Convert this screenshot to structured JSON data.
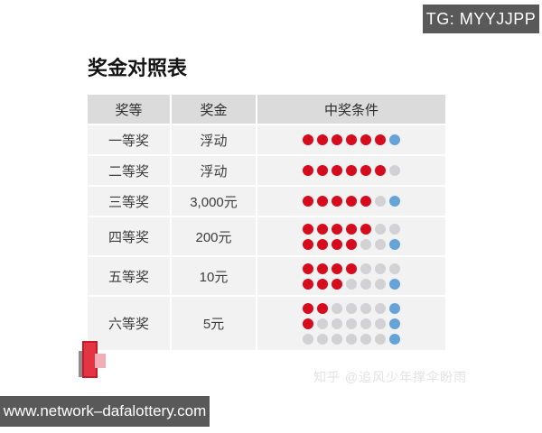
{
  "badge": {
    "label": "TG: MYYJJPP"
  },
  "title": "奖金对照表",
  "table": {
    "headers": [
      "奖等",
      "奖金",
      "中奖条件"
    ],
    "rows": [
      {
        "level": "一等奖",
        "prize": "浮动",
        "dots": [
          [
            "r",
            "r",
            "r",
            "r",
            "r",
            "r",
            "b"
          ]
        ]
      },
      {
        "level": "二等奖",
        "prize": "浮动",
        "dots": [
          [
            "r",
            "r",
            "r",
            "r",
            "r",
            "r",
            "g"
          ]
        ]
      },
      {
        "level": "三等奖",
        "prize": "3,000元",
        "dots": [
          [
            "r",
            "r",
            "r",
            "r",
            "r",
            "g",
            "b"
          ]
        ]
      },
      {
        "level": "四等奖",
        "prize": "200元",
        "dots": [
          [
            "r",
            "r",
            "r",
            "r",
            "r",
            "g",
            "g"
          ],
          [
            "r",
            "r",
            "r",
            "r",
            "g",
            "g",
            "b"
          ]
        ]
      },
      {
        "level": "五等奖",
        "prize": "10元",
        "dots": [
          [
            "r",
            "r",
            "r",
            "r",
            "g",
            "g",
            "g"
          ],
          [
            "r",
            "r",
            "r",
            "g",
            "g",
            "g",
            "b"
          ]
        ]
      },
      {
        "level": "六等奖",
        "prize": "5元",
        "dots": [
          [
            "r",
            "r",
            "g",
            "g",
            "g",
            "g",
            "b"
          ],
          [
            "r",
            "g",
            "g",
            "g",
            "g",
            "g",
            "b"
          ],
          [
            "g",
            "g",
            "g",
            "g",
            "g",
            "g",
            "b"
          ]
        ]
      }
    ],
    "dot_colors": {
      "r": "#d60b1e",
      "g": "#d2d2d4",
      "b": "#66a3d9"
    }
  },
  "watermark": "知乎 @追风少年撑伞盼雨",
  "footer": {
    "url": "www.network–dafalottery.com"
  },
  "colors": {
    "dark_gray": "#595959",
    "header_bg": "#dbdbdc",
    "row_bg": "#f2f2f3"
  }
}
